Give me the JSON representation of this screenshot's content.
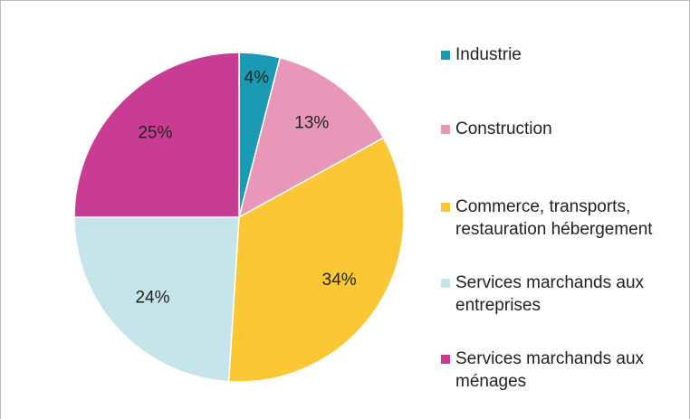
{
  "chart_data": {
    "type": "pie",
    "categories": [
      "Industrie",
      "Construction",
      "Commerce, transports, restauration hébergement",
      "Services marchands aux entreprises",
      "Services marchands aux ménages"
    ],
    "values": [
      4,
      13,
      34,
      24,
      25
    ],
    "value_labels": [
      "4%",
      "13%",
      "34%",
      "24%",
      "25%"
    ],
    "colors": [
      "#1b9bb3",
      "#e897b8",
      "#fbc735",
      "#c6e5ea",
      "#c83d93"
    ],
    "legend": "right"
  }
}
